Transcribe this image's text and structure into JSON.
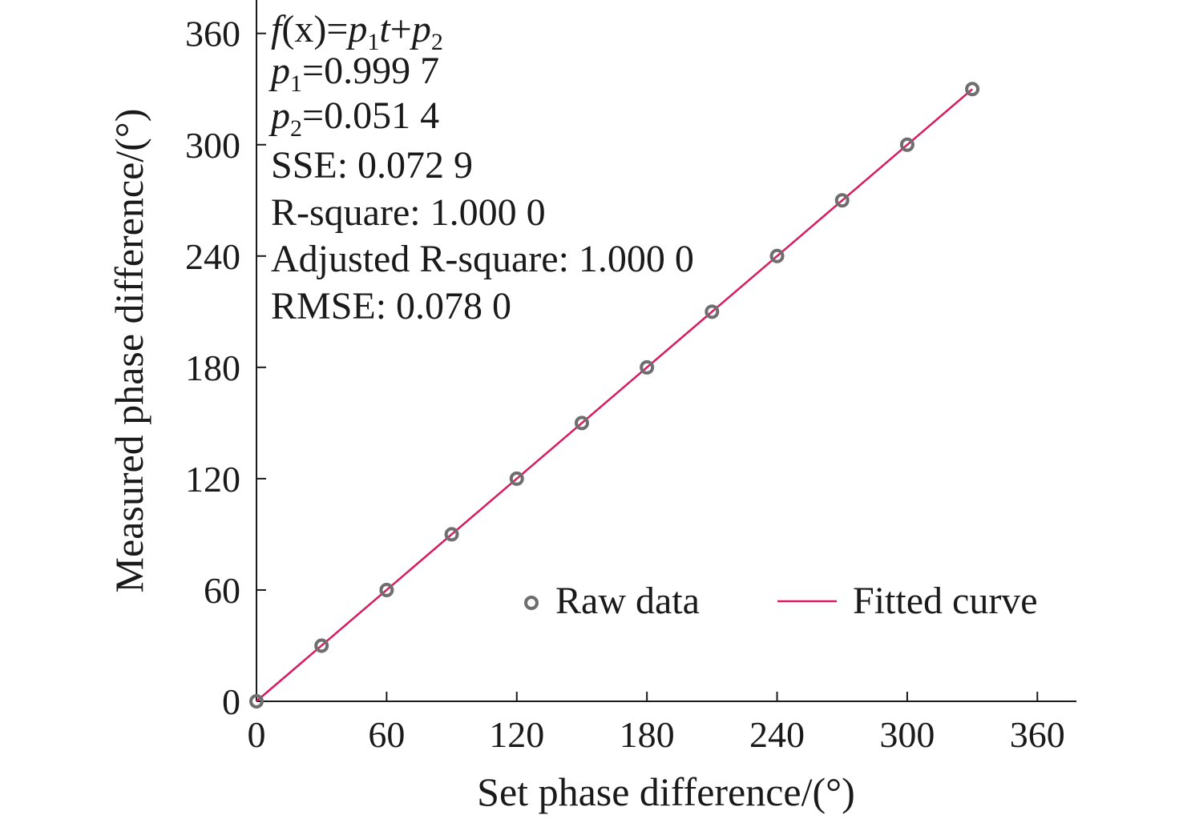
{
  "chart_data": {
    "type": "scatter",
    "xlabel": "Set phase difference/(°)",
    "ylabel": "Measured phase difference/(°)",
    "xlim": [
      0,
      378
    ],
    "ylim": [
      0,
      378
    ],
    "xticks": [
      0,
      60,
      120,
      180,
      240,
      300,
      360
    ],
    "yticks": [
      0,
      60,
      120,
      180,
      240,
      300,
      360
    ],
    "grid": false,
    "legend_position": "lower-right",
    "series": [
      {
        "name": "Raw data",
        "kind": "scatter",
        "color": "#6e6e6e",
        "x": [
          0,
          30,
          60,
          90,
          120,
          150,
          180,
          210,
          240,
          270,
          300,
          330
        ],
        "y": [
          0,
          30,
          60,
          90,
          120,
          150,
          180,
          210,
          240,
          270,
          300,
          330
        ]
      },
      {
        "name": "Fitted curve",
        "kind": "line",
        "color": "#d81b60",
        "x": [
          0,
          330
        ],
        "y": [
          0.0514,
          329.952
        ]
      }
    ],
    "annotations": {
      "equation": {
        "f": "f",
        "x_part": "(x)=",
        "p1": "p",
        "p1_sub": "1",
        "t": "t",
        "plus": "+",
        "p2": "p",
        "p2_sub": "2"
      },
      "p1_line": {
        "p": "p",
        "sub": "1",
        "value": "=0.999 7"
      },
      "p2_line": {
        "p": "p",
        "sub": "2",
        "value": "=0.051 4"
      },
      "sse": "SSE: 0.072 9",
      "r_square": "R-square: 1.000 0",
      "adj_r_square": "Adjusted R-square: 1.000 0",
      "rmse": "RMSE: 0.078 0"
    }
  }
}
